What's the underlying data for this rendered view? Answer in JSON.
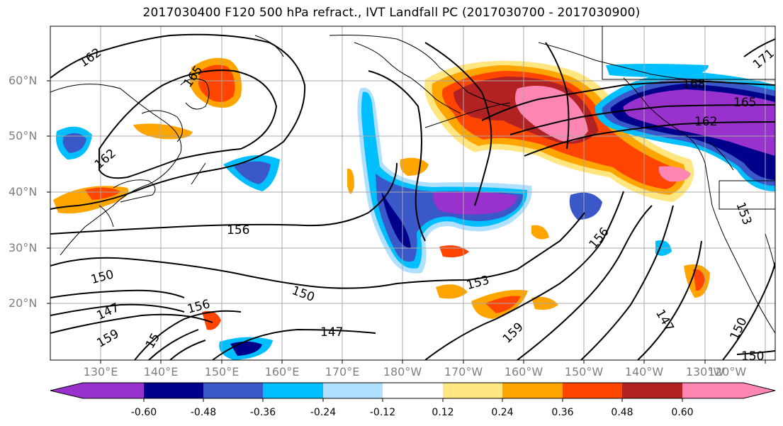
{
  "title": "2017030400 F120 500 hPa refract., IVT Landfall PC (2017030700 - 2017030900)",
  "lat_labels": [
    "60°N",
    "50°N",
    "40°N",
    "30°N",
    "20°N"
  ],
  "lon_labels": [
    "130°E",
    "140°E",
    "150°E",
    "160°E",
    "170°E",
    "180°W",
    "170°W",
    "160°W",
    "150°W",
    "140°W",
    "130°W",
    "120°W"
  ],
  "contour_labels": [
    "162",
    "165",
    "162",
    "156",
    "150",
    "147",
    "159",
    "156",
    "15",
    "150",
    "147",
    "153",
    "159",
    "156",
    "168",
    "165",
    "162",
    "153",
    "147",
    "150",
    "150",
    "171"
  ],
  "colorbar": {
    "tick_labels": [
      "-0.60",
      "-0.48",
      "-0.36",
      "-0.24",
      "-0.12",
      "0.12",
      "0.24",
      "0.36",
      "0.48",
      "0.60"
    ],
    "colors": [
      "#9932cc",
      "#00008b",
      "#3a58c8",
      "#00bfff",
      "#b0e0ff",
      "#ffffff",
      "#ffe680",
      "#ffa500",
      "#ff4500",
      "#b22222",
      "#ff85b3"
    ]
  },
  "fill_colors": {
    "neg_strong": "#9932cc",
    "neg_deep": "#00008b",
    "neg_mid": "#3a58c8",
    "neg_light": "#00bfff",
    "neg_pale": "#b0e0ff",
    "pos_pale": "#ffe680",
    "pos_light": "#ffa500",
    "pos_mid": "#ff4500",
    "pos_deep": "#b22222",
    "pos_strong": "#ff85b3"
  }
}
